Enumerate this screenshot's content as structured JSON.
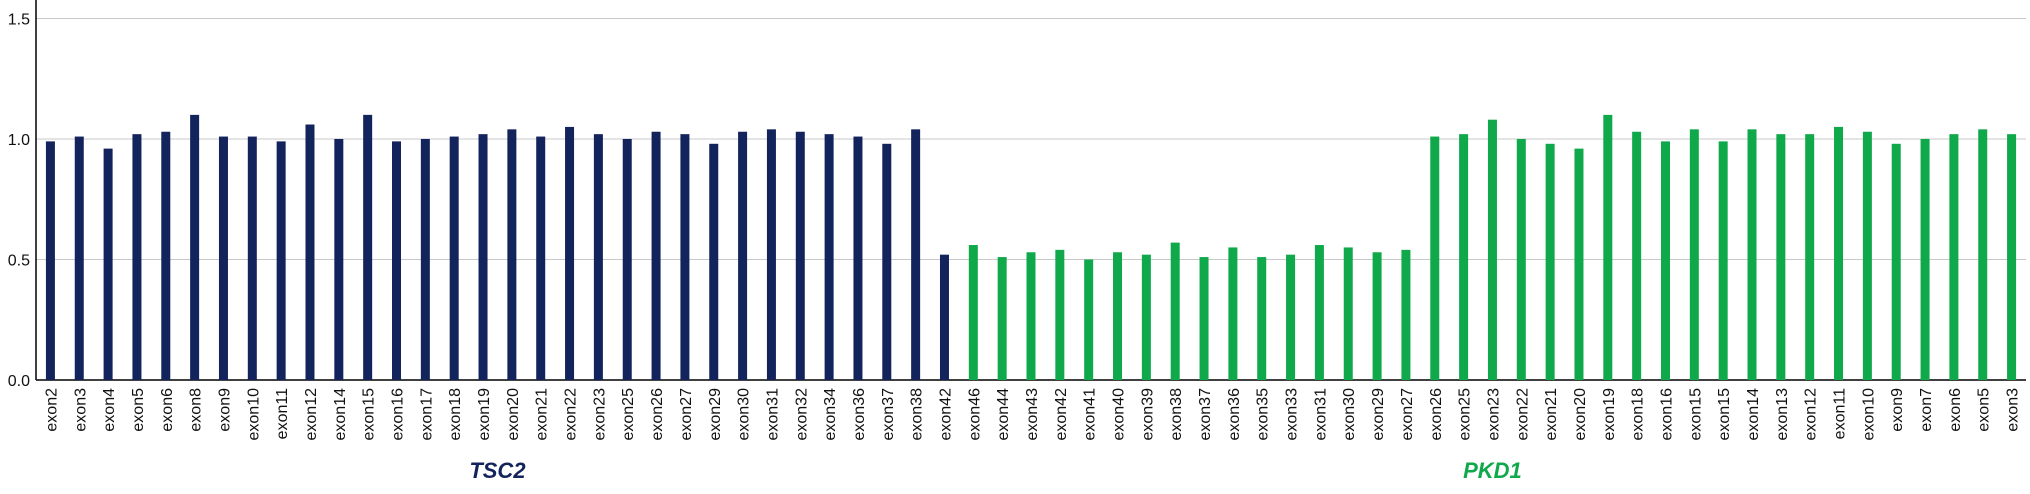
{
  "chart_data": {
    "type": "bar",
    "categories": [
      "exon2",
      "exon3",
      "exon4",
      "exon5",
      "exon6",
      "exon8",
      "exon9",
      "exon10",
      "exon11",
      "exon12",
      "exon14",
      "exon15",
      "exon16",
      "exon17",
      "exon18",
      "exon19",
      "exon20",
      "exon21",
      "exon22",
      "exon23",
      "exon25",
      "exon26",
      "exon27",
      "exon29",
      "exon30",
      "exon31",
      "exon32",
      "exon34",
      "exon36",
      "exon37",
      "exon38",
      "exon42",
      "exon46",
      "exon44",
      "exon43",
      "exon42",
      "exon41",
      "exon40",
      "exon39",
      "exon38",
      "exon37",
      "exon36",
      "exon35",
      "exon33",
      "exon31",
      "exon30",
      "exon29",
      "exon27",
      "exon26",
      "exon25",
      "exon23",
      "exon22",
      "exon21",
      "exon20",
      "exon19",
      "exon18",
      "exon16",
      "exon15",
      "exon15",
      "exon14",
      "exon13",
      "exon12",
      "exon11",
      "exon10",
      "exon9",
      "exon7",
      "exon6",
      "exon5",
      "exon3"
    ],
    "series": [
      {
        "name": "TSC2",
        "color": "#13235b",
        "values": [
          0.99,
          1.01,
          0.96,
          1.02,
          1.03,
          1.1,
          1.01,
          1.01,
          0.99,
          1.06,
          1.0,
          1.1,
          0.99,
          1.0,
          1.01,
          1.02,
          1.04,
          1.01,
          1.05,
          1.02,
          1.0,
          1.03,
          1.02,
          0.98,
          1.03,
          1.04,
          1.03,
          1.02,
          1.01,
          0.98,
          1.04,
          0.52,
          null,
          null,
          null,
          null,
          null,
          null,
          null,
          null,
          null,
          null,
          null,
          null,
          null,
          null,
          null,
          null,
          null,
          null,
          null,
          null,
          null,
          null,
          null,
          null,
          null,
          null,
          null,
          null,
          null,
          null,
          null,
          null,
          null,
          null,
          null,
          null,
          null
        ]
      },
      {
        "name": "PKD1",
        "color": "#0fa84a",
        "values": [
          null,
          null,
          null,
          null,
          null,
          null,
          null,
          null,
          null,
          null,
          null,
          null,
          null,
          null,
          null,
          null,
          null,
          null,
          null,
          null,
          null,
          null,
          null,
          null,
          null,
          null,
          null,
          null,
          null,
          null,
          null,
          null,
          0.56,
          0.51,
          0.53,
          0.54,
          0.5,
          0.53,
          0.52,
          0.57,
          0.51,
          0.55,
          0.51,
          0.52,
          0.56,
          0.55,
          0.53,
          0.54,
          1.01,
          1.02,
          1.08,
          1.0,
          0.98,
          0.96,
          1.1,
          1.03,
          0.99,
          1.04,
          0.99,
          1.04,
          1.02,
          1.02,
          1.05,
          1.03,
          0.98,
          1.0,
          1.02,
          1.04,
          1.02
        ]
      }
    ],
    "ylim": [
      0,
      1.56
    ],
    "yticks": [
      {
        "value": 0,
        "label": "0.0"
      },
      {
        "value": 0.5,
        "label": "0.5"
      },
      {
        "value": 1,
        "label": "1.0"
      },
      {
        "value": 1.5,
        "label": "1.5"
      }
    ],
    "grid": true
  }
}
